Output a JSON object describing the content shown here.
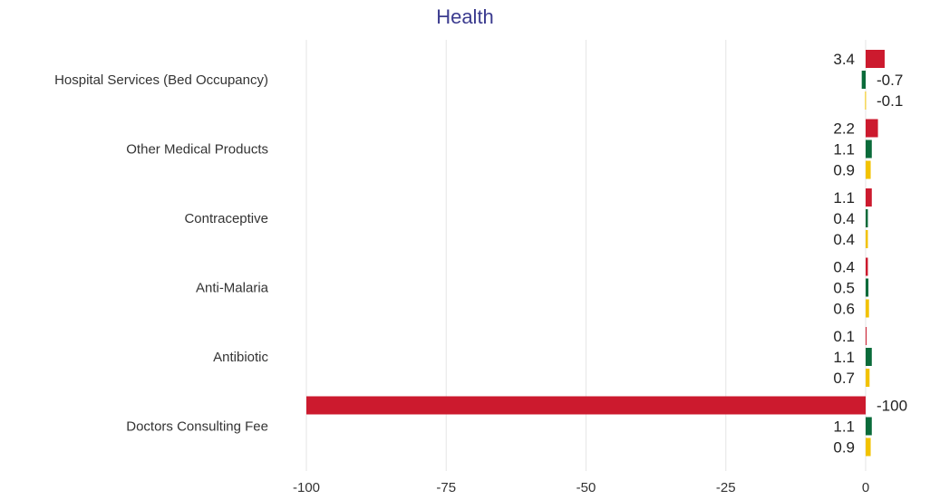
{
  "chart_data": {
    "type": "bar",
    "orientation": "horizontal",
    "title": "Health",
    "xlabel": "",
    "ylabel": "",
    "xlim": [
      -100,
      3.5
    ],
    "xticks": [
      -100,
      -75,
      -50,
      -25,
      0
    ],
    "grid": true,
    "legend": "none",
    "categories": [
      "Hospital Services (Bed Occupancy)",
      "Other Medical Products",
      "Contraceptive",
      "Anti-Malaria",
      "Antibiotic",
      "Doctors Consulting Fee"
    ],
    "series": [
      {
        "color": "#cc1a2e",
        "values": [
          3.4,
          2.2,
          1.1,
          0.4,
          0.1,
          -100
        ]
      },
      {
        "color": "#0a6b3a",
        "values": [
          -0.7,
          1.1,
          0.4,
          0.5,
          1.1,
          1.1
        ]
      },
      {
        "color": "#f2c200",
        "values": [
          -0.1,
          0.9,
          0.4,
          0.6,
          0.7,
          0.9
        ]
      }
    ]
  }
}
